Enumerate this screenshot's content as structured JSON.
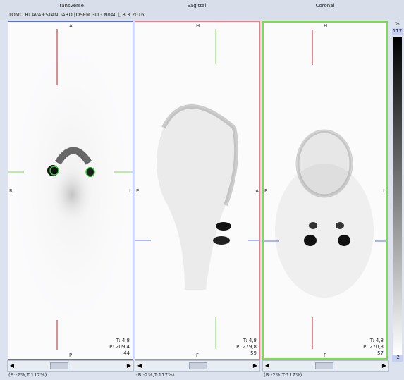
{
  "header": {
    "transverse": "Transverse",
    "sagittal": "Sagittal",
    "coronal": "Coronal",
    "study": "TOMO HLAVA+STANDARD [OSEM 3D - NoAC], 8.3.2016"
  },
  "transverse": {
    "top": "A",
    "bottom": "P",
    "left": "R",
    "right": "L",
    "t": "T: 4,8",
    "p": "P: 209,4",
    "slice": "44"
  },
  "sagittal": {
    "top": "H",
    "bottom": "F",
    "left": "P",
    "right": "A",
    "t": "T: 4,8",
    "p": "P: 279,8",
    "slice": "59"
  },
  "coronal": {
    "top": "H",
    "bottom": "F",
    "left": "R",
    "right": "L",
    "t": "T: 4,8",
    "p": "P: 270,3",
    "slice": "57"
  },
  "scale": {
    "unit": "%",
    "max": "117",
    "min": "-2"
  },
  "window_labels": {
    "transverse": "(B:-2%,T:117%)",
    "sagittal": "(B:-2%,T:117%)",
    "coronal": "(B:-2%,T:117%)"
  },
  "colors": {
    "transverse": "#5a6cf0",
    "sagittal": "#f27a84",
    "coronal": "#7ae04a"
  },
  "icons": {
    "scroll_left": "left-arrow-icon",
    "scroll_right": "right-arrow-icon"
  }
}
